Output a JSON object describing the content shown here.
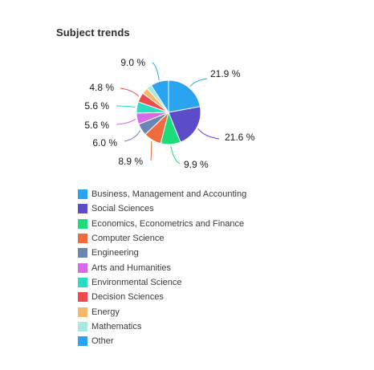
{
  "header": {
    "title": "Subject trends"
  },
  "chart_data": {
    "type": "pie",
    "title": "Subject trends",
    "legend_position": "bottom-left",
    "slices": [
      {
        "label": "Business, Management and Accounting",
        "value": 21.9,
        "display": "21.9 %",
        "color": "#2aa3f0"
      },
      {
        "label": "Social Sciences",
        "value": 21.6,
        "display": "21.6 %",
        "color": "#5b4cc9"
      },
      {
        "label": "Economics, Econometrics and Finance",
        "value": 9.9,
        "display": "9.9 %",
        "color": "#1fdc7a"
      },
      {
        "label": "Computer Science",
        "value": 8.9,
        "display": "8.9 %",
        "color": "#f06b3d"
      },
      {
        "label": "Engineering",
        "value": 6.0,
        "display": "6.0 %",
        "color": "#6c86b4"
      },
      {
        "label": "Arts and Humanities",
        "value": 5.6,
        "display": "5.6 %",
        "color": "#d66bea"
      },
      {
        "label": "Environmental Science",
        "value": 5.6,
        "display": "5.6 %",
        "color": "#2bdcc2"
      },
      {
        "label": "Decision Sciences",
        "value": 4.8,
        "display": "4.8 %",
        "color": "#ee4b4b"
      },
      {
        "label": "Energy",
        "value": 3.2,
        "display": "",
        "color": "#f7b86c"
      },
      {
        "label": "Mathematics",
        "value": 2.5,
        "display": "",
        "color": "#a7e8e0"
      },
      {
        "label": "Other",
        "value": 9.0,
        "display": "9.0 %",
        "color": "#2aa3f0"
      }
    ]
  }
}
